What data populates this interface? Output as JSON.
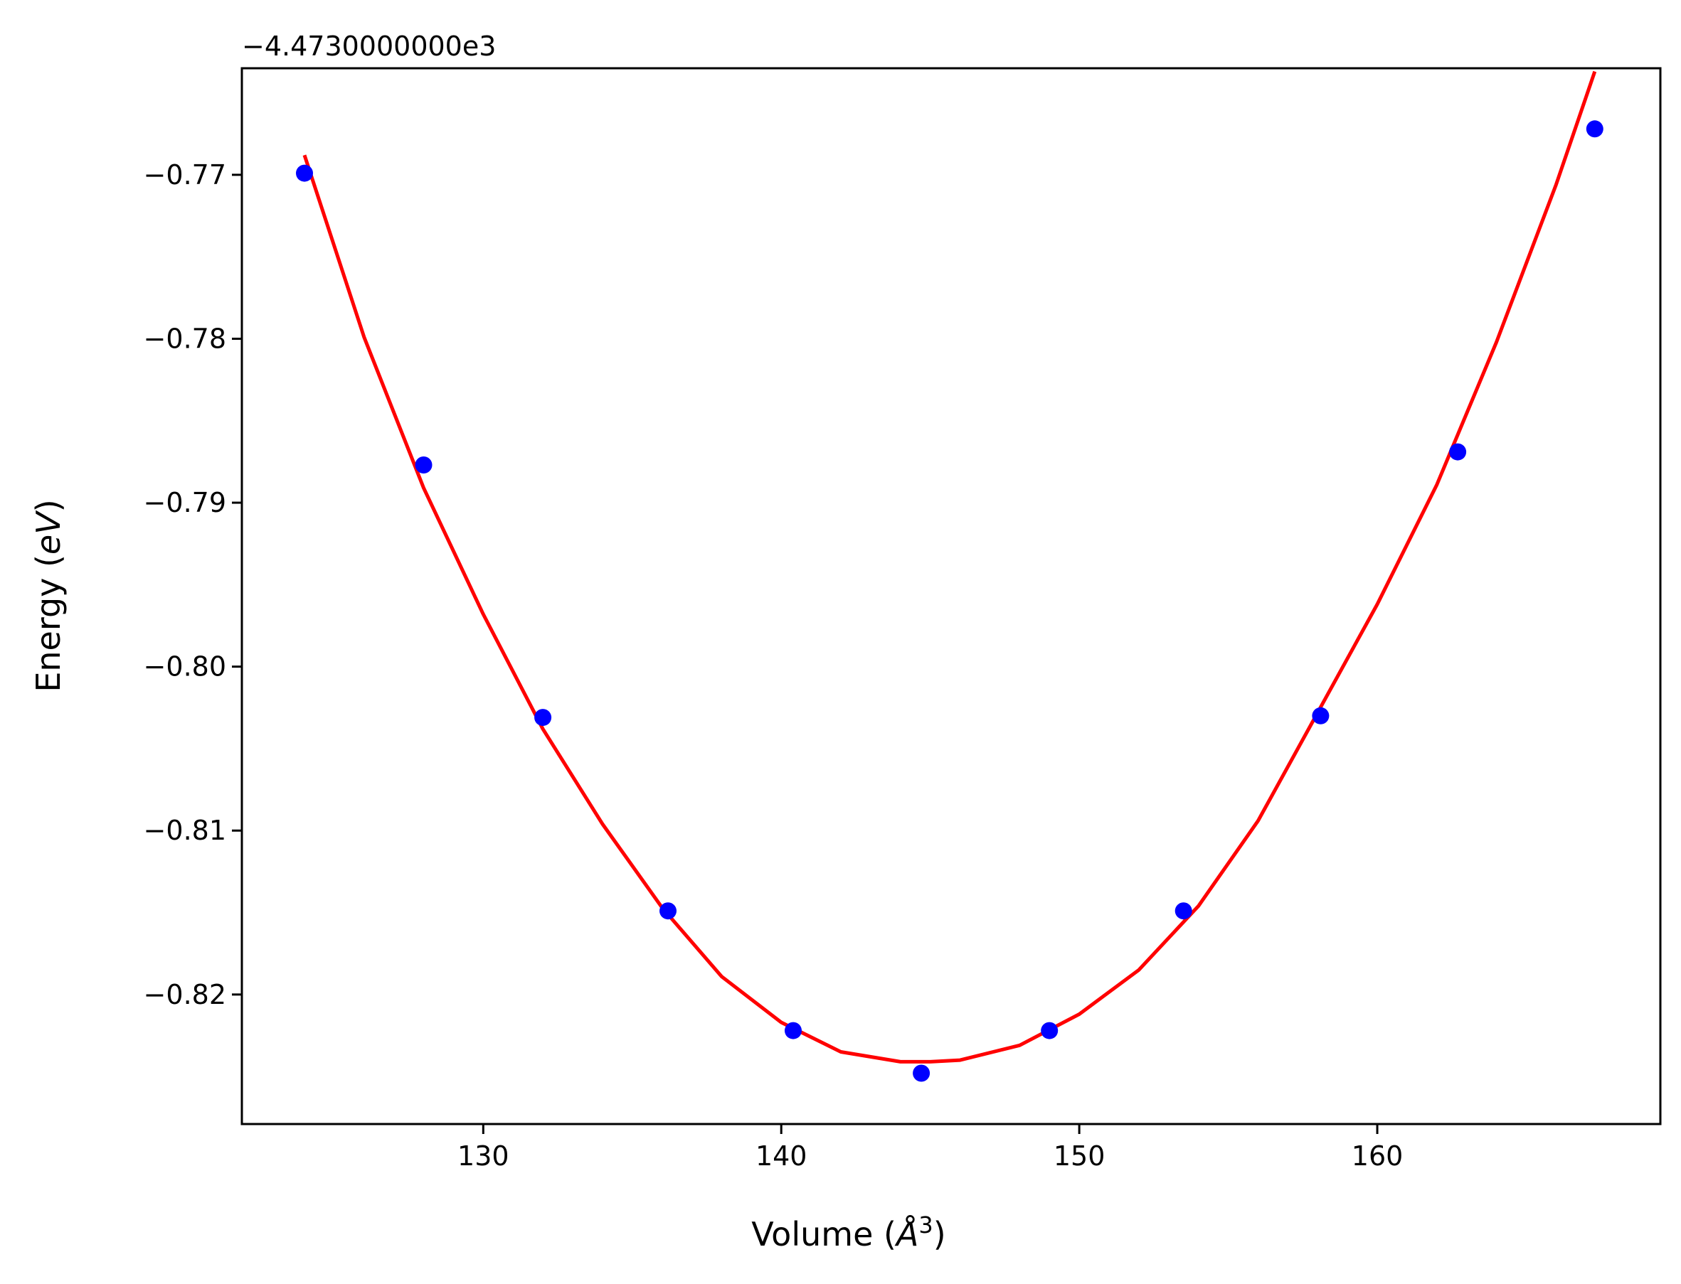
{
  "chart_data": {
    "type": "scatter",
    "title": "",
    "xlabel": "Volume (",
    "xlabel_symbol": "Å",
    "xlabel_exp": "3",
    "xlabel_close": ")",
    "ylabel": "Energy (",
    "ylabel_unit": "eV",
    "ylabel_close": ")",
    "y_offset_label": "−4.4730000000e3",
    "xlim": [
      121.9,
      169.5
    ],
    "ylim": [
      -0.8279,
      -0.7635
    ],
    "x_ticks": [
      130,
      140,
      150,
      160
    ],
    "y_ticks": [
      -0.77,
      -0.78,
      -0.79,
      -0.8,
      -0.81,
      -0.82
    ],
    "x_tick_labels": [
      "130",
      "140",
      "150",
      "160"
    ],
    "y_tick_labels": [
      "−0.77",
      "−0.78",
      "−0.79",
      "−0.80",
      "−0.81",
      "−0.82"
    ],
    "grid": false,
    "series": [
      {
        "marker": "circle",
        "color": "#0000ff",
        "x": [
          124.0,
          128.0,
          132.0,
          136.2,
          140.4,
          144.7,
          149.0,
          153.5,
          158.1,
          162.7,
          167.3
        ],
        "y": [
          -0.7699,
          -0.7877,
          -0.8031,
          -0.8149,
          -0.8222,
          -0.8248,
          -0.8222,
          -0.8149,
          -0.803,
          -0.7869,
          -0.7672
        ]
      },
      {
        "style": "line",
        "color": "#ff0000",
        "fit": {
          "x": [
            124.0,
            126.0,
            128.0,
            130.0,
            132.0,
            134.0,
            136.0,
            138.0,
            140.0,
            142.0,
            144.0,
            145.0,
            146.0,
            148.0,
            150.0,
            152.0,
            154.0,
            156.0,
            158.0,
            160.0,
            162.0,
            164.0,
            166.0,
            167.3
          ],
          "y": [
            -0.7688,
            -0.7799,
            -0.7891,
            -0.7968,
            -0.8038,
            -0.8096,
            -0.8147,
            -0.8189,
            -0.8217,
            -0.8235,
            -0.8241,
            -0.8241,
            -0.824,
            -0.8231,
            -0.8212,
            -0.8185,
            -0.8146,
            -0.8094,
            -0.8028,
            -0.7962,
            -0.7889,
            -0.7802,
            -0.7706,
            -0.7637
          ]
        }
      }
    ]
  }
}
